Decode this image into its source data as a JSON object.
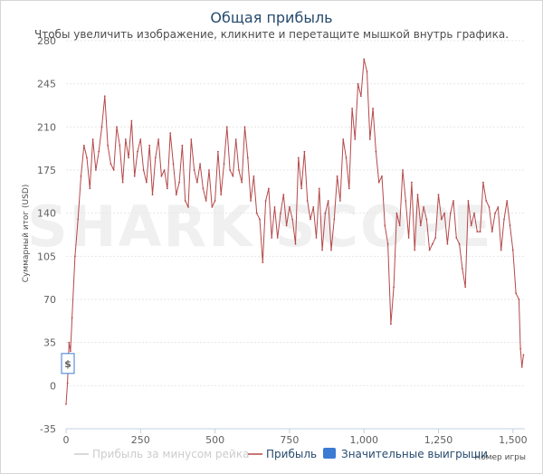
{
  "chart_data": {
    "type": "line",
    "title": "Общая прибыль",
    "subtitle": "Чтобы увеличить изображение, кликните и перетащите мышкой внутрь графика.",
    "ylabel": "Суммарный итог (USD)",
    "xlabel": "Номер игры",
    "xlim": [
      0,
      1540
    ],
    "ylim": [
      -35,
      280
    ],
    "x_ticks": [
      "0",
      "250",
      "500",
      "750",
      "1,000",
      "1,250",
      "1,500"
    ],
    "y_ticks": [
      "280",
      "245",
      "210",
      "175",
      "140",
      "105",
      "70",
      "35",
      "0",
      "-35"
    ],
    "grid": true,
    "legend_position": "bottom",
    "legend": [
      {
        "name": "Прибыль за минусом рейка",
        "color": "#cccccc",
        "visible": false
      },
      {
        "name": "Прибыль",
        "color": "#b5484a",
        "visible": true
      },
      {
        "name": "Значительные выигрыши",
        "color": "#3b7bd4",
        "visible": true
      }
    ],
    "flag_label": "$",
    "watermark": "SHARK SCOPE",
    "series": [
      {
        "name": "Прибыль",
        "color": "#b5484a",
        "x": [
          0,
          5,
          10,
          15,
          20,
          30,
          40,
          50,
          60,
          70,
          80,
          90,
          100,
          110,
          120,
          130,
          140,
          150,
          160,
          170,
          180,
          190,
          200,
          210,
          220,
          230,
          240,
          250,
          260,
          270,
          280,
          290,
          300,
          310,
          320,
          330,
          340,
          350,
          360,
          370,
          380,
          390,
          400,
          410,
          420,
          430,
          440,
          450,
          460,
          470,
          480,
          490,
          500,
          510,
          520,
          530,
          540,
          550,
          560,
          570,
          580,
          590,
          600,
          610,
          620,
          630,
          640,
          650,
          660,
          670,
          680,
          690,
          700,
          710,
          720,
          730,
          740,
          750,
          760,
          770,
          780,
          790,
          800,
          810,
          820,
          830,
          840,
          850,
          860,
          870,
          880,
          890,
          900,
          910,
          920,
          930,
          940,
          950,
          960,
          970,
          980,
          990,
          1000,
          1010,
          1020,
          1030,
          1040,
          1050,
          1060,
          1070,
          1080,
          1090,
          1100,
          1110,
          1120,
          1130,
          1140,
          1150,
          1160,
          1170,
          1180,
          1190,
          1200,
          1210,
          1220,
          1230,
          1240,
          1250,
          1260,
          1270,
          1280,
          1290,
          1300,
          1310,
          1320,
          1330,
          1340,
          1350,
          1360,
          1370,
          1380,
          1390,
          1400,
          1410,
          1420,
          1430,
          1440,
          1450,
          1460,
          1470,
          1480,
          1490,
          1500,
          1510,
          1520,
          1525,
          1530,
          1535
        ],
        "values": [
          -15,
          2,
          35,
          28,
          55,
          105,
          135,
          170,
          195,
          185,
          160,
          200,
          175,
          190,
          210,
          235,
          195,
          180,
          175,
          210,
          195,
          165,
          200,
          185,
          215,
          170,
          190,
          200,
          175,
          165,
          195,
          155,
          185,
          200,
          170,
          175,
          160,
          205,
          180,
          155,
          165,
          195,
          150,
          145,
          200,
          175,
          165,
          180,
          160,
          150,
          175,
          145,
          150,
          190,
          155,
          180,
          210,
          175,
          170,
          200,
          175,
          165,
          210,
          185,
          150,
          170,
          140,
          135,
          100,
          150,
          160,
          120,
          145,
          120,
          140,
          155,
          130,
          145,
          135,
          115,
          185,
          160,
          190,
          150,
          135,
          145,
          120,
          160,
          110,
          140,
          150,
          110,
          135,
          170,
          150,
          200,
          185,
          160,
          225,
          200,
          245,
          235,
          265,
          255,
          200,
          225,
          190,
          165,
          170,
          130,
          115,
          50,
          80,
          140,
          130,
          175,
          150,
          120,
          165,
          110,
          155,
          130,
          145,
          135,
          110,
          115,
          120,
          155,
          135,
          140,
          115,
          140,
          150,
          120,
          115,
          95,
          80,
          150,
          130,
          140,
          125,
          125,
          165,
          150,
          145,
          125,
          140,
          145,
          110,
          135,
          150,
          130,
          110,
          75,
          70,
          30,
          15,
          25
        ]
      }
    ]
  }
}
